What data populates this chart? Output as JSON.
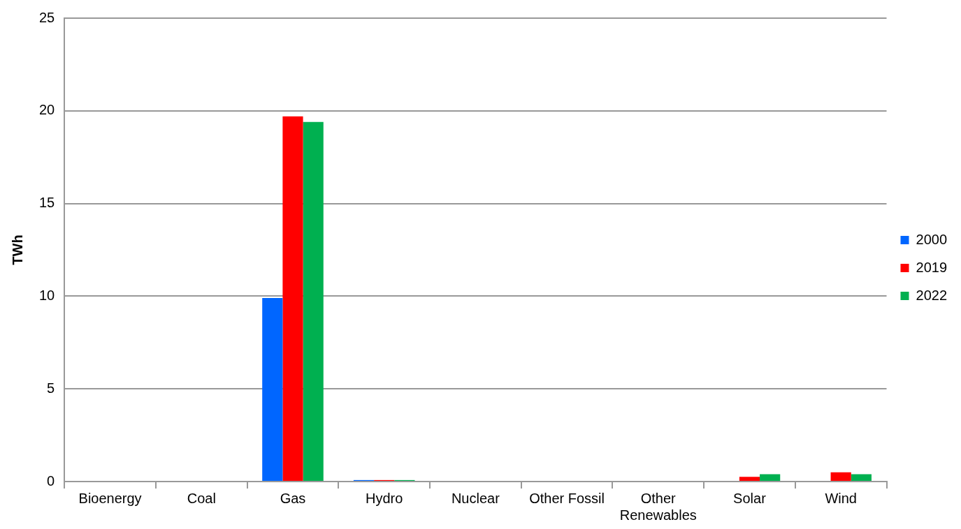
{
  "chart_data": {
    "type": "bar",
    "ylabel": "TWh",
    "categories": [
      "Bioenergy",
      "Coal",
      "Gas",
      "Hydro",
      "Nuclear",
      "Other Fossil",
      "Other Renewables",
      "Solar",
      "Wind"
    ],
    "series": [
      {
        "name": "2000",
        "color": "#0066ff",
        "values": [
          0,
          0,
          9.9,
          0.08,
          0,
          0,
          0,
          0,
          0
        ]
      },
      {
        "name": "2019",
        "color": "#ff0000",
        "values": [
          0,
          0,
          19.7,
          0.08,
          0,
          0,
          0,
          0.25,
          0.5
        ]
      },
      {
        "name": "2022",
        "color": "#00b050",
        "values": [
          0,
          0,
          19.4,
          0.08,
          0,
          0,
          0,
          0.4,
          0.4
        ]
      }
    ],
    "ylim": [
      0,
      25
    ],
    "yticks": [
      0,
      5,
      10,
      15,
      20,
      25
    ],
    "grid": "y",
    "legend": "right"
  }
}
